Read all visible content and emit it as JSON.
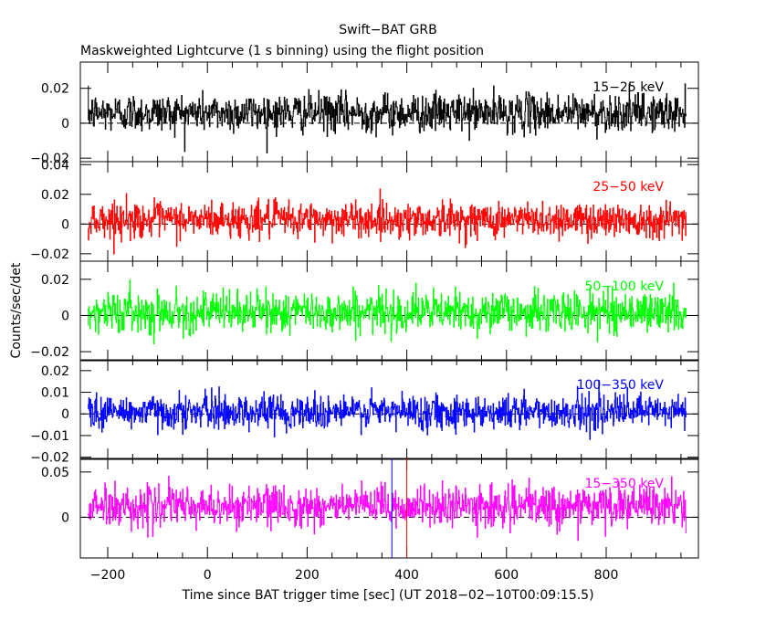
{
  "chart_data": {
    "type": "line",
    "title": "Swift−BAT GRB",
    "subtitle": "Maskweighted Lightcurve (1 s binning) using the flight position",
    "xlabel": "Time since BAT trigger time [sec] (UT 2018−02−10T00:09:15.5)",
    "ylabel": "Counts/sec/det",
    "xlim": [
      -255,
      985
    ],
    "x_ticks": [
      -200,
      0,
      200,
      400,
      600,
      800
    ],
    "x_tick_labels": [
      "−200",
      "0",
      "200",
      "400",
      "600",
      "800"
    ],
    "data_x_range": [
      -240,
      960
    ],
    "markers": [
      {
        "x": 370,
        "color": "#0000ff"
      },
      {
        "x": 400,
        "color": "#ff0000"
      }
    ],
    "panels": [
      {
        "label": "15−25 keV",
        "color": "#000000",
        "label_color": "#000000",
        "ylim": [
          -0.022,
          0.035
        ],
        "y_ticks": [
          -0.02,
          0,
          0.02
        ],
        "y_tick_labels": [
          "−0.02",
          "0",
          "0.02"
        ],
        "mean": 0.006,
        "sigma": 0.0055
      },
      {
        "label": "25−50 keV",
        "color": "#ff0000",
        "label_color": "#ff0000",
        "ylim": [
          -0.025,
          0.042
        ],
        "y_ticks": [
          -0.02,
          0,
          0.02,
          0.04
        ],
        "y_tick_labels": [
          "−0.02",
          "0",
          "0.02",
          "0.04"
        ],
        "mean": 0.003,
        "sigma": 0.006
      },
      {
        "label": "50−100 keV",
        "color": "#00ff00",
        "label_color": "#00ff00",
        "ylim": [
          -0.025,
          0.03
        ],
        "y_ticks": [
          -0.02,
          0,
          0.02
        ],
        "y_tick_labels": [
          "−0.02",
          "0",
          "0.02"
        ],
        "mean": 0.002,
        "sigma": 0.0055
      },
      {
        "label": "100−350 keV",
        "color": "#0000ff",
        "label_color": "#0000ff",
        "ylim": [
          -0.021,
          0.025
        ],
        "y_ticks": [
          -0.02,
          -0.01,
          0,
          0.01,
          0.02
        ],
        "y_tick_labels": [
          "−0.02",
          "−0.01",
          "0",
          "0.01",
          "0.02"
        ],
        "mean": 0.001,
        "sigma": 0.004
      },
      {
        "label": "15−350 keV",
        "color": "#ff00ff",
        "label_color": "#ff00ff",
        "ylim": [
          -0.045,
          0.065
        ],
        "y_ticks": [
          0,
          0.05
        ],
        "y_tick_labels": [
          "0",
          "0.05"
        ],
        "mean": 0.012,
        "sigma": 0.011
      }
    ]
  }
}
